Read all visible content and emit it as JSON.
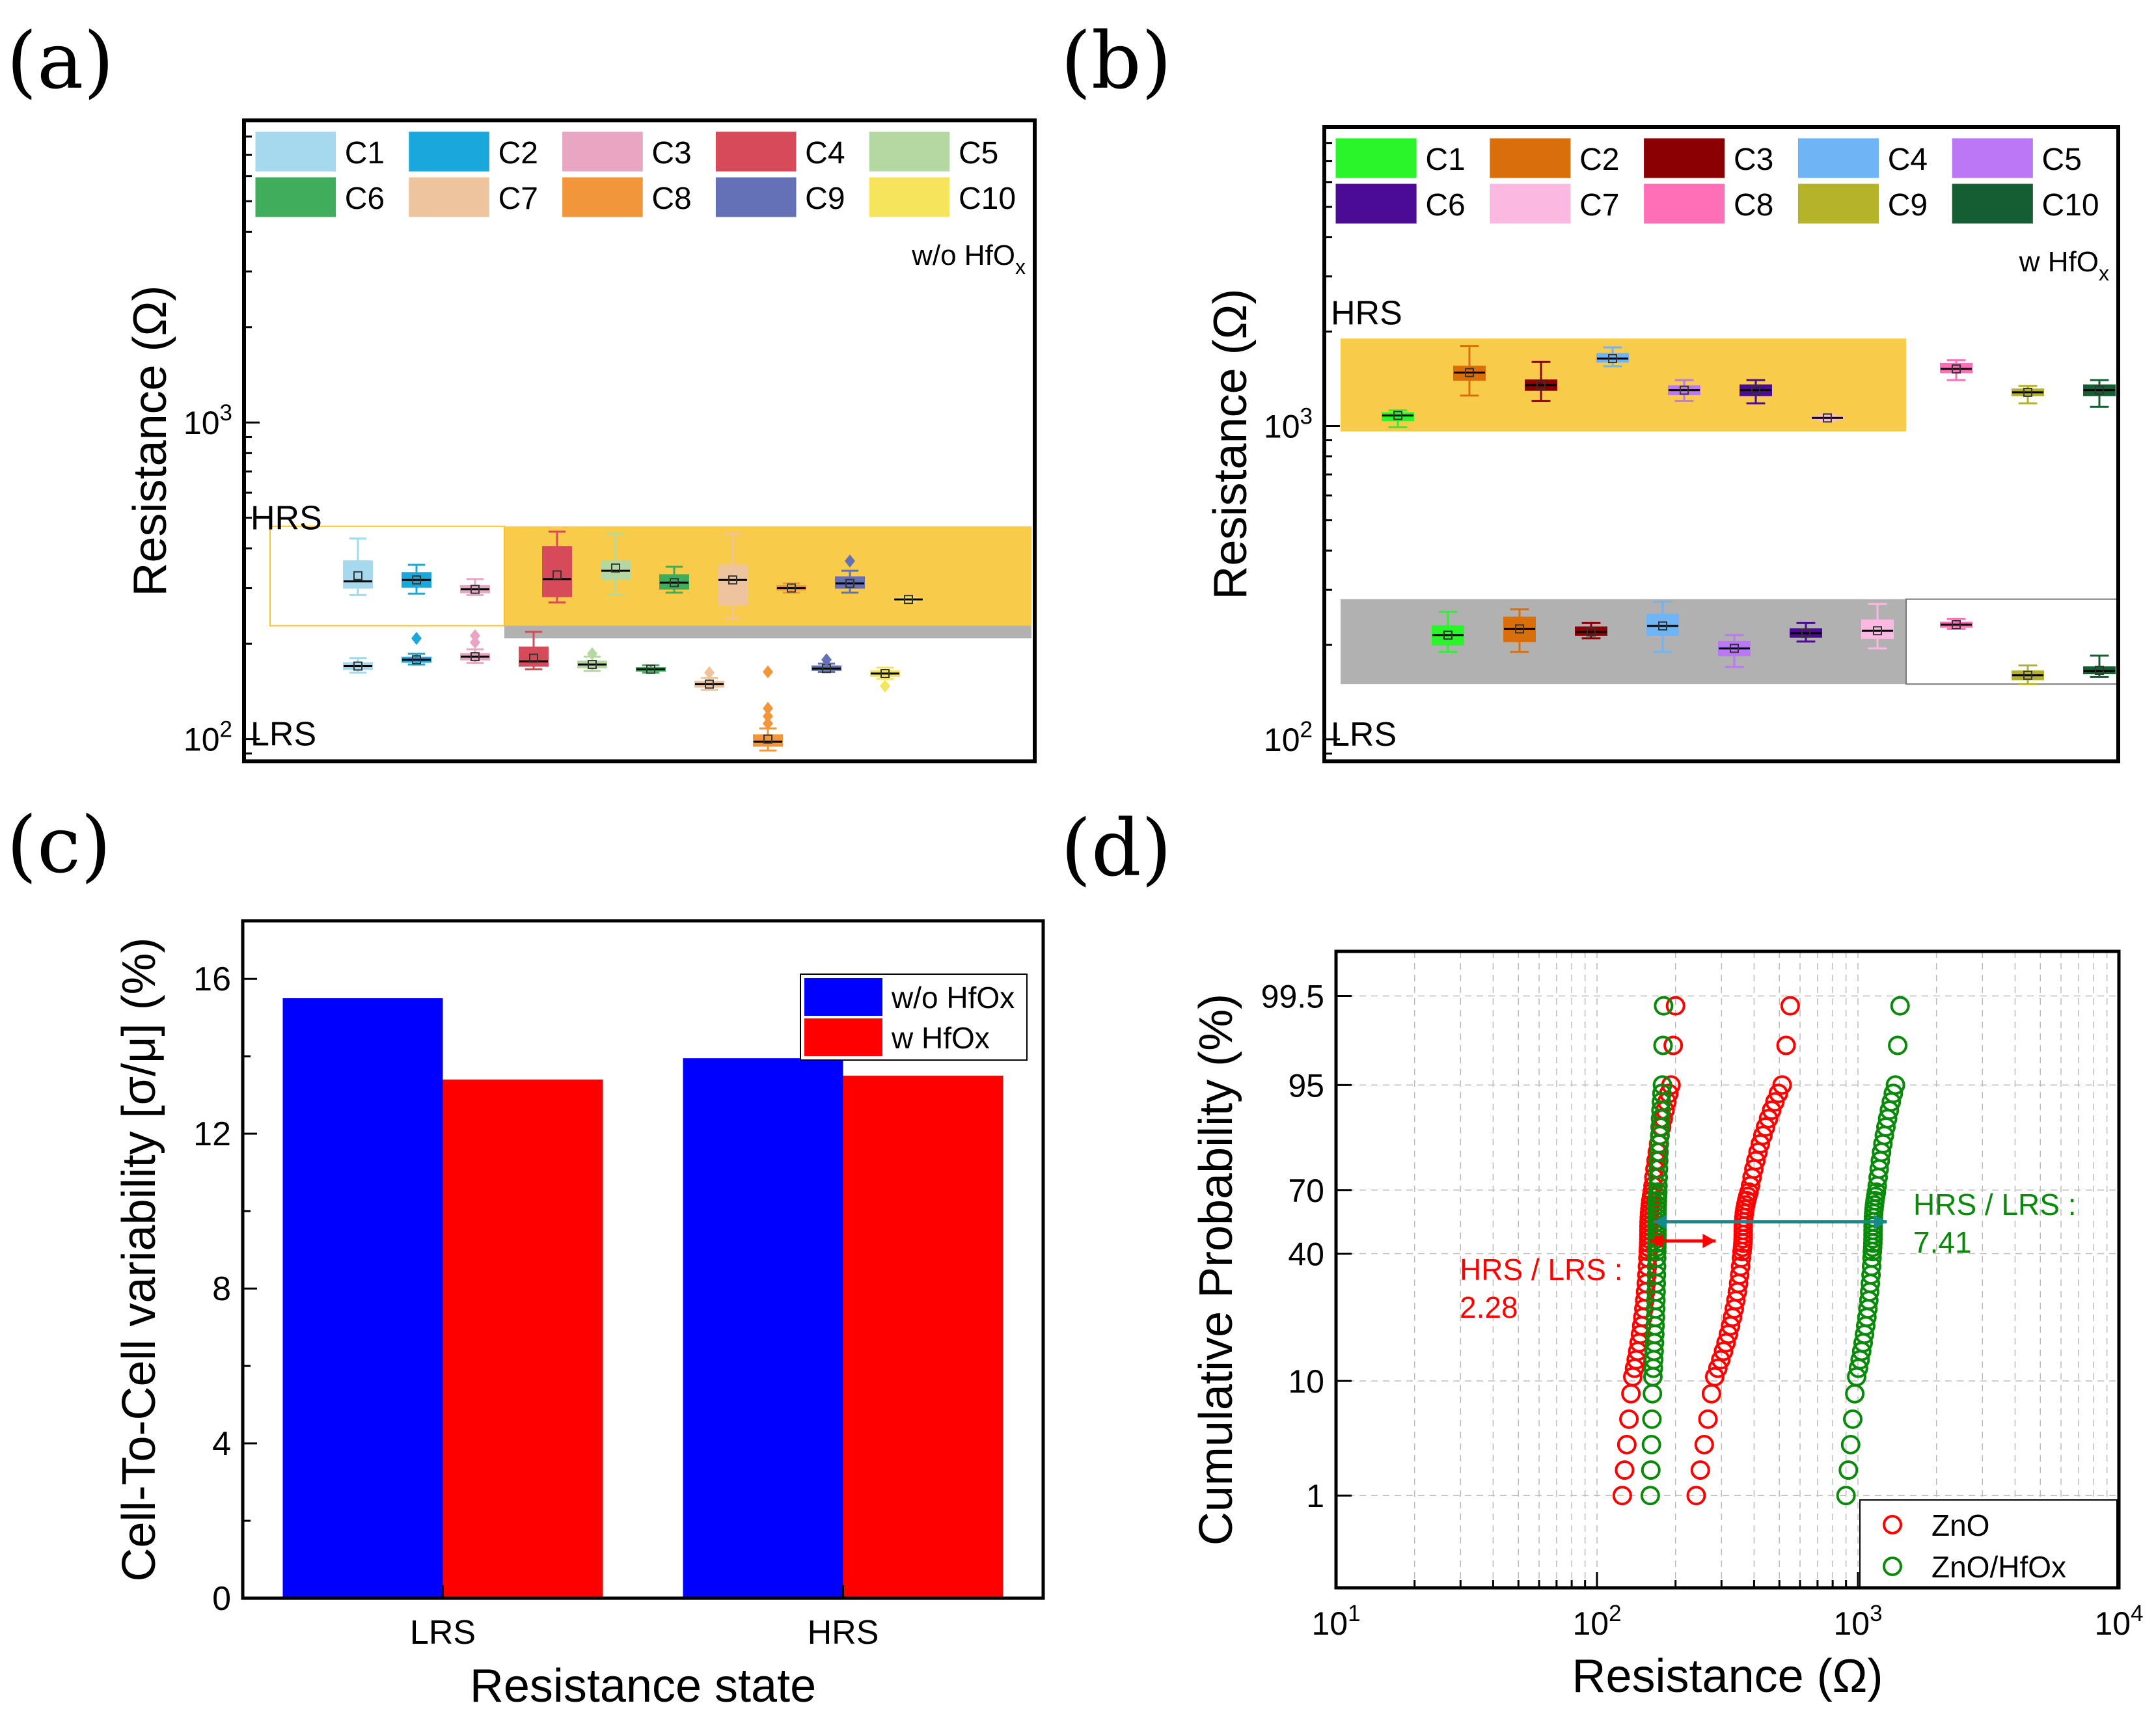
{
  "panel_labels": [
    "(a)",
    "(b)",
    "(c)",
    "(d)"
  ],
  "colors": {
    "a_series": [
      "#a6d8ee",
      "#1aa7dc",
      "#e8a6c3",
      "#d64a5a",
      "#b5d8a3",
      "#3fad5c",
      "#eec49e",
      "#f2963b",
      "#6471b6",
      "#f6e45c"
    ],
    "b_series": [
      "#2af52a",
      "#d96f0a",
      "#8b0000",
      "#6fb4f4",
      "#bb77f5",
      "#4b0b94",
      "#fbb8e0",
      "#ff6fb7",
      "#b5b329",
      "#155e33"
    ],
    "band_yellow": "#f8c22a",
    "band_gray": "#a8a8a8",
    "bar_blue": "#0000ff",
    "bar_red": "#ff0000",
    "zno_red": "#ff0000",
    "hfox_green": "#0a8a0a",
    "arrow_red": "#ff0000",
    "arrow_teal": "#138b8b"
  },
  "chart_data": [
    {
      "id": "a",
      "type": "box",
      "title": "",
      "xlabel": "",
      "ylabel": "Resistance (Ω)",
      "yscale": "log",
      "ylim": [
        85,
        9000
      ],
      "yticks": [
        {
          "value": 100,
          "base": "10",
          "exp": "2"
        },
        {
          "value": 1000,
          "base": "10",
          "exp": "3"
        }
      ],
      "legend_cols": 5,
      "legend": [
        "C1",
        "C2",
        "C3",
        "C4",
        "C5",
        "C6",
        "C7",
        "C8",
        "C9",
        "C10"
      ],
      "corner_note": {
        "text": "w/o HfO",
        "sub": "x"
      },
      "regions": [
        {
          "label": "HRS",
          "y": 500
        },
        {
          "label": "LRS",
          "y": 104
        }
      ],
      "bands": [
        {
          "kind": "hrs_outline",
          "x": [
            0,
            4
          ],
          "y": [
            228,
            470
          ]
        },
        {
          "kind": "gray",
          "x": [
            4,
            13
          ],
          "y": [
            208,
            228
          ]
        },
        {
          "kind": "yellow",
          "x": [
            4,
            13
          ],
          "y": [
            228,
            470
          ]
        }
      ],
      "hrs": [
        {
          "x": 1,
          "min": 285,
          "q1": 300,
          "median": 315,
          "q3": 365,
          "max": 430,
          "mean": 328
        },
        {
          "x": 2,
          "min": 288,
          "q1": 302,
          "median": 318,
          "q3": 335,
          "max": 355,
          "mean": 318
        },
        {
          "x": 3,
          "min": 285,
          "q1": 290,
          "median": 297,
          "q3": 305,
          "max": 320,
          "mean": 297
        },
        {
          "x": 4.4,
          "min": 270,
          "q1": 282,
          "median": 320,
          "q3": 405,
          "max": 452,
          "mean": 330
        },
        {
          "x": 5.4,
          "min": 285,
          "q1": 320,
          "median": 340,
          "q3": 365,
          "max": 445,
          "mean": 347
        },
        {
          "x": 6.4,
          "min": 290,
          "q1": 298,
          "median": 312,
          "q3": 330,
          "max": 350,
          "mean": 312
        },
        {
          "x": 7.4,
          "min": 240,
          "q1": 265,
          "median": 318,
          "q3": 355,
          "max": 445,
          "mean": 318
        },
        {
          "x": 8.4,
          "min": 290,
          "q1": 296,
          "median": 300,
          "q3": 305,
          "max": 310,
          "mean": 300
        },
        {
          "x": 9.4,
          "min": 290,
          "q1": 300,
          "median": 310,
          "q3": 325,
          "max": 340,
          "mean": 310,
          "outliers": [
            365
          ]
        },
        {
          "x": 10.4,
          "min": 272,
          "q1": 274,
          "median": 276,
          "q3": 278,
          "max": 280,
          "mean": 276
        }
      ],
      "lrs": [
        {
          "x": 1,
          "min": 162,
          "q1": 166,
          "median": 170,
          "q3": 174,
          "max": 180,
          "mean": 170
        },
        {
          "x": 2,
          "min": 172,
          "q1": 175,
          "median": 178,
          "q3": 181,
          "max": 186,
          "mean": 178,
          "outliers": [
            208
          ]
        },
        {
          "x": 3,
          "min": 174,
          "q1": 178,
          "median": 182,
          "q3": 186,
          "max": 192,
          "mean": 182,
          "outliers": [
            202,
            212
          ]
        },
        {
          "x": 4,
          "min": 166,
          "q1": 170,
          "median": 176,
          "q3": 195,
          "max": 218,
          "mean": 180
        },
        {
          "x": 5,
          "min": 164,
          "q1": 168,
          "median": 172,
          "q3": 176,
          "max": 182,
          "mean": 172,
          "outliers": [
            186
          ]
        },
        {
          "x": 6,
          "min": 162,
          "q1": 164,
          "median": 166,
          "q3": 168,
          "max": 171,
          "mean": 166
        },
        {
          "x": 7,
          "min": 143,
          "q1": 146,
          "median": 149,
          "q3": 152,
          "max": 156,
          "mean": 149,
          "outliers": [
            162
          ]
        },
        {
          "x": 8,
          "min": 92,
          "q1": 95,
          "median": 98,
          "q3": 103,
          "max": 108,
          "mean": 100,
          "outliers": [
            112,
            118,
            125,
            163
          ]
        },
        {
          "x": 9,
          "min": 163,
          "q1": 165,
          "median": 167,
          "q3": 170,
          "max": 173,
          "mean": 167,
          "outliers": [
            178
          ]
        },
        {
          "x": 10,
          "min": 155,
          "q1": 158,
          "median": 161,
          "q3": 164,
          "max": 168,
          "mean": 161,
          "outliers": [
            147
          ]
        }
      ]
    },
    {
      "id": "b",
      "type": "box",
      "title": "",
      "xlabel": "",
      "ylabel": "Resistance (Ω)",
      "yscale": "log",
      "ylim": [
        85,
        9000
      ],
      "yticks": [
        {
          "value": 100,
          "base": "10",
          "exp": "2"
        },
        {
          "value": 1000,
          "base": "10",
          "exp": "3"
        }
      ],
      "legend_cols": 5,
      "legend": [
        "C1",
        "C2",
        "C3",
        "C4",
        "C5",
        "C6",
        "C7",
        "C8",
        "C9",
        "C10"
      ],
      "corner_note": {
        "text": "w HfO",
        "sub": "x"
      },
      "regions": [
        {
          "label": "HRS",
          "y": 2300
        },
        {
          "label": "LRS",
          "y": 104
        }
      ],
      "bands": [
        {
          "kind": "yellow",
          "x": [
            0,
            7.9
          ],
          "y": [
            960,
            1900
          ]
        },
        {
          "kind": "gray",
          "x": [
            0,
            7.9
          ],
          "y": [
            150,
            280
          ]
        },
        {
          "kind": "lrs_outline",
          "x": [
            7.9,
            11.2
          ],
          "y": [
            150,
            280
          ]
        }
      ],
      "hrs": [
        {
          "x": 0.3,
          "min": 990,
          "q1": 1040,
          "median": 1080,
          "q3": 1100,
          "max": 1120,
          "mean": 1080
        },
        {
          "x": 1.3,
          "min": 1250,
          "q1": 1400,
          "median": 1480,
          "q3": 1550,
          "max": 1800,
          "mean": 1480
        },
        {
          "x": 2.3,
          "min": 1200,
          "q1": 1300,
          "median": 1350,
          "q3": 1400,
          "max": 1600,
          "mean": 1350
        },
        {
          "x": 3.3,
          "min": 1550,
          "q1": 1600,
          "median": 1640,
          "q3": 1700,
          "max": 1780,
          "mean": 1640
        },
        {
          "x": 4.3,
          "min": 1200,
          "q1": 1260,
          "median": 1300,
          "q3": 1340,
          "max": 1400,
          "mean": 1300
        },
        {
          "x": 5.3,
          "min": 1180,
          "q1": 1250,
          "median": 1300,
          "q3": 1350,
          "max": 1400,
          "mean": 1300
        },
        {
          "x": 6.3,
          "min": 1040,
          "q1": 1050,
          "median": 1060,
          "q3": 1070,
          "max": 1080,
          "mean": 1060
        },
        {
          "x": 8.1,
          "min": 1400,
          "q1": 1480,
          "median": 1520,
          "q3": 1580,
          "max": 1620,
          "mean": 1520
        },
        {
          "x": 9.1,
          "min": 1180,
          "q1": 1250,
          "median": 1280,
          "q3": 1310,
          "max": 1340,
          "mean": 1280
        },
        {
          "x": 10.1,
          "min": 1150,
          "q1": 1250,
          "median": 1300,
          "q3": 1350,
          "max": 1400,
          "mean": 1300
        }
      ],
      "lrs": [
        {
          "x": 1,
          "min": 190,
          "q1": 200,
          "median": 215,
          "q3": 230,
          "max": 255,
          "mean": 215
        },
        {
          "x": 2,
          "min": 190,
          "q1": 205,
          "median": 225,
          "q3": 245,
          "max": 260,
          "mean": 225
        },
        {
          "x": 3,
          "min": 210,
          "q1": 215,
          "median": 220,
          "q3": 228,
          "max": 235,
          "mean": 220
        },
        {
          "x": 4,
          "min": 190,
          "q1": 215,
          "median": 230,
          "q3": 250,
          "max": 275,
          "mean": 230
        },
        {
          "x": 5,
          "min": 170,
          "q1": 185,
          "median": 195,
          "q3": 205,
          "max": 215,
          "mean": 195
        },
        {
          "x": 6,
          "min": 205,
          "q1": 212,
          "median": 218,
          "q3": 225,
          "max": 235,
          "mean": 218
        },
        {
          "x": 7,
          "min": 195,
          "q1": 210,
          "median": 222,
          "q3": 240,
          "max": 270,
          "mean": 222
        },
        {
          "x": 8.1,
          "min": 225,
          "q1": 228,
          "median": 232,
          "q3": 236,
          "max": 242,
          "mean": 232
        },
        {
          "x": 9.1,
          "min": 150,
          "q1": 155,
          "median": 160,
          "q3": 165,
          "max": 172,
          "mean": 160
        },
        {
          "x": 10.1,
          "min": 158,
          "q1": 162,
          "median": 165,
          "q3": 170,
          "max": 185,
          "mean": 166
        }
      ]
    },
    {
      "id": "c",
      "type": "bar",
      "title": "",
      "xlabel": "Resistance state",
      "ylabel": "Cell-To-Cell variability [σ/μ] (%)",
      "categories": [
        "LRS",
        "HRS"
      ],
      "series": [
        {
          "name": "w/o HfOx",
          "values": [
            15.5,
            13.95
          ]
        },
        {
          "name": "w HfOx",
          "values": [
            13.4,
            13.5
          ]
        }
      ],
      "ylim": [
        0,
        17.5
      ],
      "yticks": [
        0,
        4,
        8,
        12,
        16
      ]
    },
    {
      "id": "d",
      "type": "scatter",
      "title": "",
      "xlabel": "Resistance (Ω)",
      "ylabel": "Cumulative Probability (%)",
      "xscale": "log",
      "xlim": [
        10,
        10000
      ],
      "xticks": [
        {
          "value": 10,
          "base": "10",
          "exp": "1"
        },
        {
          "value": 100,
          "base": "10",
          "exp": "2"
        },
        {
          "value": 1000,
          "base": "10",
          "exp": "3"
        },
        {
          "value": 10000,
          "base": "10",
          "exp": "4"
        }
      ],
      "yscale": "probability",
      "yticks": [
        "1",
        "10",
        "40",
        "70",
        "95",
        "99.5"
      ],
      "series": [
        {
          "name": "ZnO",
          "lrs_range": [
            125,
            200
          ],
          "hrs_range": [
            240,
            550
          ],
          "n": 50
        },
        {
          "name": "ZnO/HfOx",
          "lrs_range": [
            160,
            180
          ],
          "hrs_range": [
            900,
            1450
          ],
          "n": 50
        }
      ],
      "annotations": [
        {
          "lines": [
            "HRS / LRS :",
            "2.28"
          ],
          "color_key": "zno_red"
        },
        {
          "lines": [
            "HRS / LRS :",
            "7.41"
          ],
          "color_key": "hfox_green"
        }
      ],
      "arrows": [
        {
          "from": 160,
          "to": 285,
          "prob": 46,
          "color_key": "arrow_red"
        },
        {
          "from": 165,
          "to": 1290,
          "prob": 55,
          "color_key": "arrow_teal"
        }
      ]
    }
  ]
}
